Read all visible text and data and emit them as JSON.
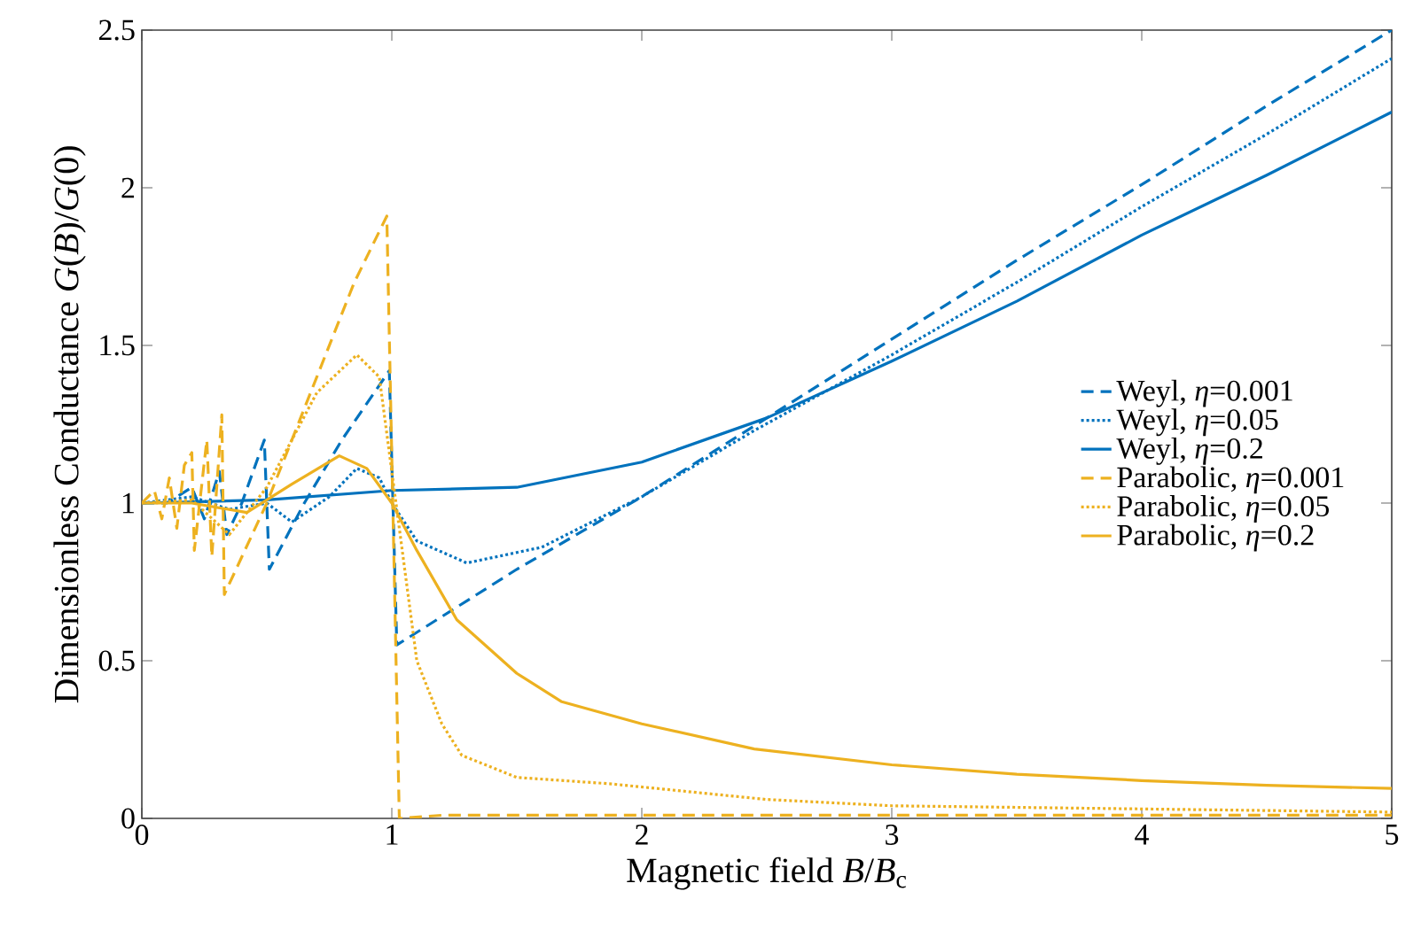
{
  "chart_data": {
    "type": "line",
    "xlabel": "Magnetic field *B*/*B*$_{c}$",
    "ylabel": "Dimensionless Conductance *G*(*B*)/*G*(0)",
    "xlim": [
      0,
      5
    ],
    "ylim": [
      0,
      2.5
    ],
    "xticks": [
      0,
      1,
      2,
      3,
      4,
      5
    ],
    "yticks": [
      0,
      0.5,
      1,
      1.5,
      2,
      2.5
    ],
    "grid": false,
    "legend": "right",
    "marker": "none",
    "series": [
      {
        "name": "Weyl, *η*=0.001",
        "color": "#0072bd",
        "line_style": "dashed",
        "x": [
          0,
          0.1,
          0.2,
          0.25,
          0.31,
          0.34,
          0.4,
          0.49,
          0.51,
          0.65,
          0.8,
          0.99,
          1.02,
          1.5,
          2,
          2.5,
          3,
          3.5,
          4,
          4.5,
          5
        ],
        "values": [
          1,
          1.0,
          1.05,
          0.95,
          1.1,
          0.9,
          1.0,
          1.2,
          0.79,
          1.0,
          1.2,
          1.42,
          0.55,
          0.79,
          1.02,
          1.27,
          1.52,
          1.77,
          2.01,
          2.26,
          2.5
        ]
      },
      {
        "name": "Weyl, *η*=0.05",
        "color": "#0072bd",
        "line_style": "dotted",
        "x": [
          0,
          0.2,
          0.35,
          0.5,
          0.6,
          0.75,
          0.86,
          0.95,
          1,
          1.1,
          1.3,
          1.6,
          2,
          2.45,
          3,
          3.5,
          4,
          4.5,
          5
        ],
        "values": [
          1,
          1.02,
          0.98,
          1.0,
          0.94,
          1.02,
          1.11,
          1.08,
          1.0,
          0.88,
          0.81,
          0.86,
          1.02,
          1.23,
          1.47,
          1.7,
          1.94,
          2.17,
          2.41
        ]
      },
      {
        "name": "Weyl, *η*=0.2",
        "color": "#0072bd",
        "line_style": "solid",
        "x": [
          0,
          0.5,
          1,
          1.5,
          2,
          2.5,
          3,
          3.5,
          4,
          4.5,
          5
        ],
        "values": [
          1,
          1.01,
          1.04,
          1.05,
          1.13,
          1.27,
          1.45,
          1.64,
          1.85,
          2.04,
          2.24
        ]
      },
      {
        "name": "Parabolic, *η*=0.001",
        "color": "#edb120",
        "line_style": "dashed",
        "x": [
          0,
          0.05,
          0.08,
          0.11,
          0.14,
          0.17,
          0.2,
          0.21,
          0.26,
          0.28,
          0.32,
          0.33,
          0.5,
          0.7,
          0.85,
          0.98,
          1.03,
          1.2,
          2,
          3,
          4,
          5
        ],
        "values": [
          1,
          1.04,
          0.95,
          1.08,
          0.92,
          1.12,
          1.16,
          0.85,
          1.2,
          0.83,
          1.28,
          0.71,
          1.0,
          1.4,
          1.7,
          1.91,
          0,
          0.01,
          0.01,
          0.01,
          0.01,
          0.01
        ]
      },
      {
        "name": "Parabolic, *η*=0.05",
        "color": "#edb120",
        "line_style": "dotted",
        "x": [
          0,
          0.2,
          0.35,
          0.5,
          0.7,
          0.86,
          0.95,
          1,
          1.1,
          1.2,
          1.28,
          1.5,
          1.87,
          2.5,
          3,
          4,
          5
        ],
        "values": [
          1,
          1.01,
          0.9,
          1.05,
          1.35,
          1.47,
          1.4,
          1.1,
          0.5,
          0.3,
          0.2,
          0.13,
          0.11,
          0.06,
          0.04,
          0.03,
          0.02
        ]
      },
      {
        "name": "Parabolic, *η*=0.2",
        "color": "#edb120",
        "line_style": "solid",
        "x": [
          0,
          0.2,
          0.42,
          0.6,
          0.79,
          0.9,
          1,
          1.1,
          1.26,
          1.5,
          1.68,
          2,
          2.45,
          3,
          3.5,
          4,
          4.5,
          5
        ],
        "values": [
          1,
          1.0,
          0.97,
          1.06,
          1.15,
          1.11,
          1.0,
          0.85,
          0.63,
          0.46,
          0.37,
          0.3,
          0.22,
          0.17,
          0.14,
          0.12,
          0.105,
          0.095
        ]
      }
    ]
  }
}
